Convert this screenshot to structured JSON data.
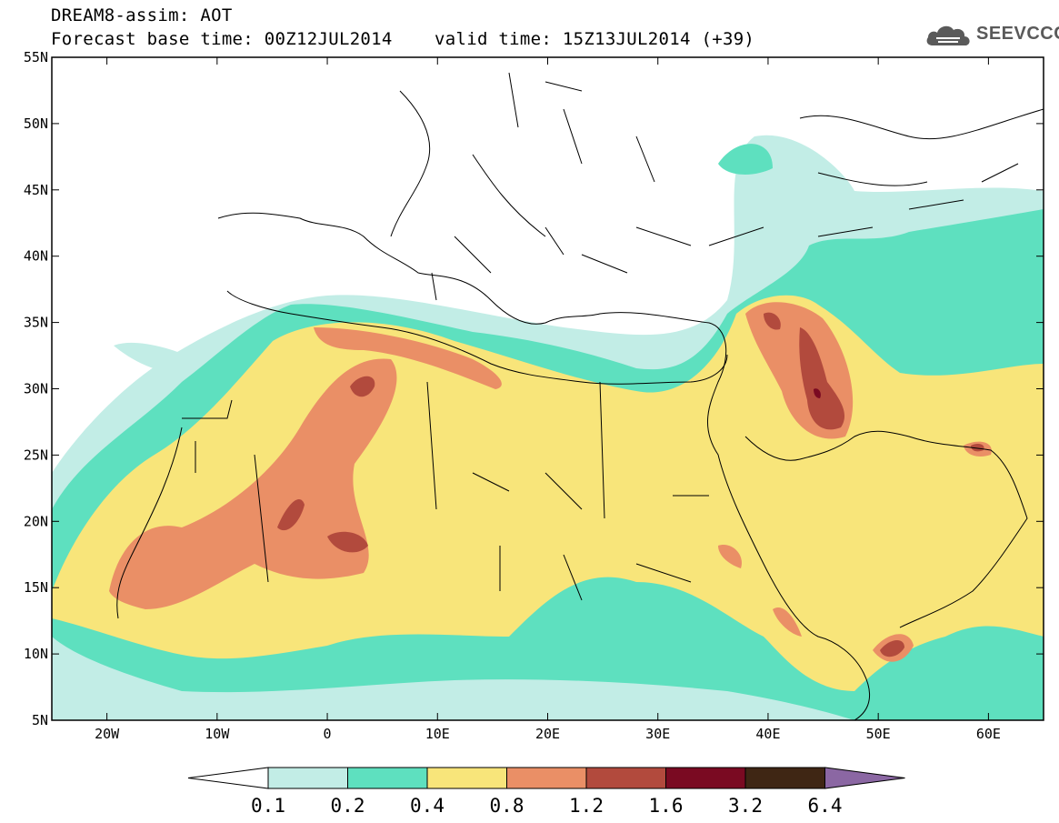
{
  "header": {
    "title": "DREAM8-assim: AOT",
    "base_time": "Forecast base time: 00Z12JUL2014",
    "valid_time": "valid time: 15Z13JUL2014 (+39)"
  },
  "logo": {
    "text": "SEEVCCC",
    "icon": "cloud-icon"
  },
  "map": {
    "lat_labels": [
      "55N",
      "50N",
      "45N",
      "40N",
      "35N",
      "30N",
      "25N",
      "20N",
      "15N",
      "10N",
      "5N"
    ],
    "lon_labels": [
      "20W",
      "10W",
      "0",
      "10E",
      "20E",
      "30E",
      "40E",
      "50E",
      "60E"
    ],
    "extent": {
      "lon": [
        -25,
        65
      ],
      "lat": [
        5,
        55
      ]
    }
  },
  "legend": {
    "levels": [
      "0.1",
      "0.2",
      "0.4",
      "0.8",
      "1.2",
      "1.6",
      "3.2",
      "6.4"
    ],
    "colors": [
      "#ffffff",
      "#c2ede6",
      "#5ee0bf",
      "#f8e57a",
      "#ea8f66",
      "#b24a3d",
      "#7a0a22",
      "#3f2614",
      "#8b67a3"
    ]
  }
}
